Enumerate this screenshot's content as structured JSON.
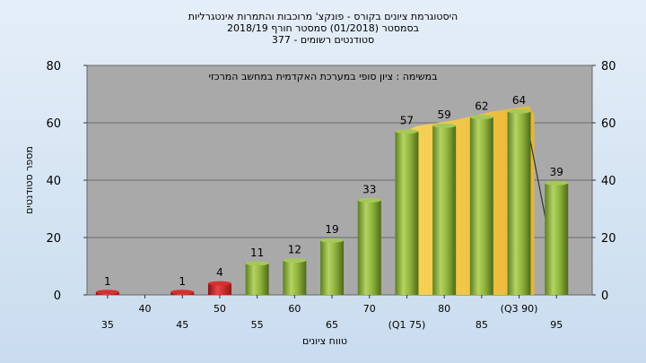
{
  "header": {
    "title_line1": "היסטוגרמת ציונים בקורס - פונקצ' מרוכבות והתמרות אינטגרליות",
    "title_line2": "בסמסטר  (01/2018)  סמסטר חורף  2018/19",
    "title_line3": "סטודנטים רשומים - 377"
  },
  "chart_data": {
    "type": "bar",
    "title": "היסטוגרמת ציונים בקורס - פונקצ' מרוכבות והתמרות אינטגרליות",
    "subtitle": "בסמסטר  (01/2018)  סמסטר חורף  2018/19 | סטודנטים רשומים - 377",
    "annotation": "במשימה : ציון סופי במערכת האקדמית במחשב המרכזי",
    "xlabel": "טווח ציונים",
    "ylabel": "מספר סטודנטים",
    "ylim": [
      0,
      80
    ],
    "yticks": [
      0,
      20,
      40,
      60,
      80
    ],
    "grid": true,
    "categories": [
      "35",
      "40",
      "45",
      "50",
      "55",
      "60",
      "65",
      "70",
      "(Q1 75)",
      "80",
      "85",
      "(Q3 90)",
      "95"
    ],
    "values": [
      1,
      0,
      1,
      4,
      11,
      12,
      19,
      33,
      57,
      59,
      62,
      64,
      39
    ],
    "data_labels": [
      "1",
      "",
      "1",
      "4",
      "11",
      "12",
      "19",
      "33",
      "57",
      "59",
      "62",
      "64",
      "39"
    ],
    "highlight_band": {
      "from_category": "(Q1 75)",
      "to_category": "(Q3 90)"
    },
    "colors": {
      "bar_fail": "#cc2222",
      "bar_pass": "#8fb83c",
      "band": "#f5c842",
      "plot_bg": "#a9a9a9"
    }
  }
}
